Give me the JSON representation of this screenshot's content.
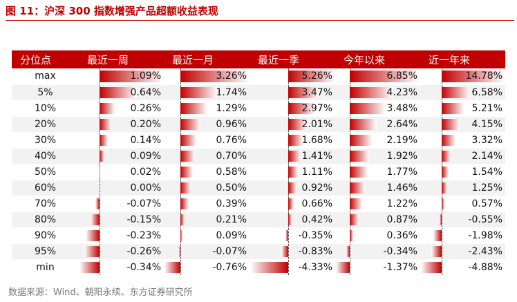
{
  "title": "图 11：沪深 300 指数增强产品超额收益表现",
  "table": {
    "headers": [
      "分位点",
      "最近一周",
      "最近一月",
      "最近一季",
      "今年以来",
      "近一年来"
    ],
    "rows": [
      {
        "label": "max",
        "values": [
          "1.09%",
          "3.26%",
          "5.26%",
          "6.85%",
          "14.78%"
        ]
      },
      {
        "label": "5%",
        "values": [
          "0.64%",
          "1.74%",
          "3.47%",
          "4.23%",
          "6.58%"
        ]
      },
      {
        "label": "10%",
        "values": [
          "0.26%",
          "1.29%",
          "2.97%",
          "3.48%",
          "5.21%"
        ]
      },
      {
        "label": "20%",
        "values": [
          "0.20%",
          "0.96%",
          "2.01%",
          "2.64%",
          "4.15%"
        ]
      },
      {
        "label": "30%",
        "values": [
          "0.14%",
          "0.76%",
          "1.68%",
          "2.19%",
          "3.32%"
        ]
      },
      {
        "label": "40%",
        "values": [
          "0.09%",
          "0.70%",
          "1.41%",
          "1.92%",
          "2.14%"
        ]
      },
      {
        "label": "50%",
        "values": [
          "0.02%",
          "0.58%",
          "1.11%",
          "1.77%",
          "1.54%"
        ]
      },
      {
        "label": "60%",
        "values": [
          "0.00%",
          "0.50%",
          "0.92%",
          "1.46%",
          "1.25%"
        ]
      },
      {
        "label": "70%",
        "values": [
          "-0.07%",
          "0.39%",
          "0.66%",
          "1.22%",
          "0.57%"
        ]
      },
      {
        "label": "80%",
        "values": [
          "-0.15%",
          "0.21%",
          "0.42%",
          "0.87%",
          "-0.55%"
        ]
      },
      {
        "label": "90%",
        "values": [
          "-0.23%",
          "0.09%",
          "-0.35%",
          "0.36%",
          "-1.98%"
        ]
      },
      {
        "label": "95%",
        "values": [
          "-0.26%",
          "-0.07%",
          "-0.83%",
          "-0.34%",
          "-2.43%"
        ]
      },
      {
        "label": "min",
        "values": [
          "-0.34%",
          "-0.76%",
          "-4.33%",
          "-1.37%",
          "-4.88%"
        ]
      }
    ]
  },
  "bar_color": "#c00000",
  "source": "数据来源：Wind、朝阳永续、东方证券研究所"
}
